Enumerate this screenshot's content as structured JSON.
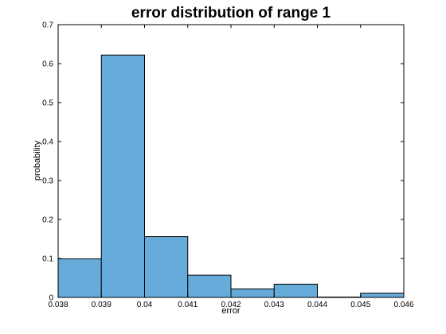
{
  "chart_data": {
    "type": "bar",
    "title": "error distribution of range 1",
    "xlabel": "error",
    "ylabel": "probability",
    "xlim": [
      0.038,
      0.046
    ],
    "ylim": [
      0,
      0.7
    ],
    "x_ticks": [
      "0.038",
      "0.039",
      "0.04",
      "0.041",
      "0.042",
      "0.043",
      "0.044",
      "0.045",
      "0.046"
    ],
    "y_ticks": [
      "0",
      "0.1",
      "0.2",
      "0.3",
      "0.4",
      "0.5",
      "0.6",
      "0.7"
    ],
    "bins": [
      {
        "x0": 0.038,
        "x1": 0.039,
        "value": 0.099
      },
      {
        "x0": 0.039,
        "x1": 0.04,
        "value": 0.622
      },
      {
        "x0": 0.04,
        "x1": 0.041,
        "value": 0.156
      },
      {
        "x0": 0.041,
        "x1": 0.042,
        "value": 0.057
      },
      {
        "x0": 0.042,
        "x1": 0.043,
        "value": 0.022
      },
      {
        "x0": 0.043,
        "x1": 0.044,
        "value": 0.034
      },
      {
        "x0": 0.044,
        "x1": 0.045,
        "value": 0.001
      },
      {
        "x0": 0.045,
        "x1": 0.046,
        "value": 0.011
      }
    ],
    "bar_color": "#67ABDB",
    "edge_color": "#000000",
    "grid": false,
    "box": true
  }
}
